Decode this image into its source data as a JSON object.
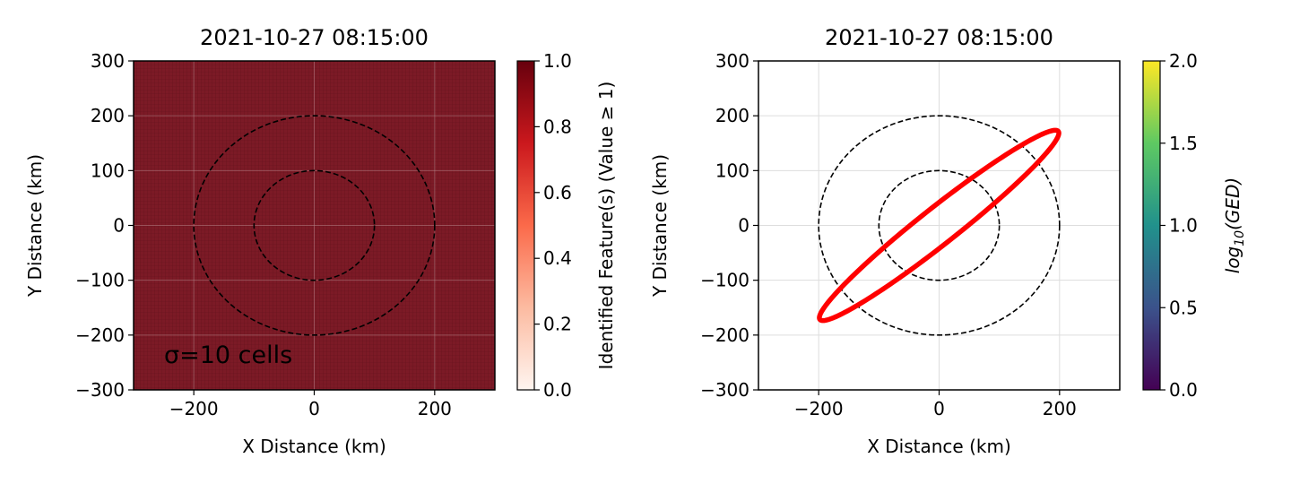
{
  "chart_data": [
    {
      "type": "heatmap",
      "title": "2021-10-27 08:15:00",
      "xlabel": "X Distance (km)",
      "ylabel": "Y Distance (km)",
      "xlim": [
        -300,
        300
      ],
      "ylim": [
        -300,
        300
      ],
      "xticks": [
        -200,
        0,
        200
      ],
      "yticks": [
        300,
        200,
        100,
        0,
        -100,
        -200,
        -300
      ],
      "grid": true,
      "field_value": 1.0,
      "annotation": "σ=10 cells",
      "reference_circles_km": [
        100,
        200
      ],
      "colorbar": {
        "label": "Identified Feature(s) (Value ≥ 1)",
        "range": [
          0.0,
          1.0
        ],
        "ticks": [
          1.0,
          0.8,
          0.6,
          0.4,
          0.2,
          0.0
        ],
        "colormap": "Reds",
        "colors": [
          "#fff5f0",
          "#fcbba1",
          "#fb6a4a",
          "#cb181d",
          "#67000d"
        ]
      },
      "fill_color": "#7c1a26"
    },
    {
      "type": "line",
      "title": "2021-10-27 08:15:00",
      "xlabel": "X Distance (km)",
      "ylabel": "Y Distance (km)",
      "xlim": [
        -300,
        300
      ],
      "ylim": [
        -300,
        300
      ],
      "xticks": [
        -200,
        0,
        200
      ],
      "yticks": [
        300,
        200,
        100,
        0,
        -100,
        -200,
        -300
      ],
      "grid": true,
      "reference_circles_km": [
        100,
        200
      ],
      "ellipse": {
        "center": [
          0,
          0
        ],
        "semi_major_km": 262,
        "semi_minor_km": 32,
        "angle_deg": 41,
        "color": "#ff0000"
      },
      "colorbar": {
        "label": "log10(GED)",
        "range": [
          0.0,
          2.0
        ],
        "ticks": [
          2.0,
          1.5,
          1.0,
          0.5,
          0.0
        ],
        "colormap": "viridis",
        "colors": [
          "#440154",
          "#3b528b",
          "#21918c",
          "#5ec962",
          "#fde725"
        ]
      }
    }
  ],
  "annotation_text": "σ=10 cells",
  "colorbar2_label_main": "log",
  "colorbar2_label_sub": "10",
  "colorbar2_label_rest": "(GED)"
}
